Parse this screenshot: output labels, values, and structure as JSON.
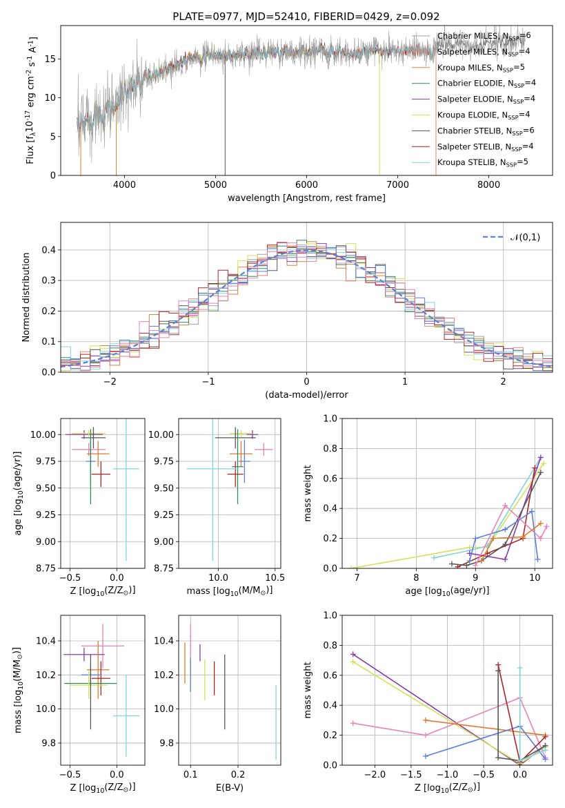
{
  "figure": {
    "title": "PLATE=0977, MJD=52410, FIBERID=0429, z=0.092"
  },
  "colors": {
    "chabrier_miles": "#a0a0a0",
    "salpeter_miles": "#e8836a",
    "kroupa_miles": "#d8823a",
    "chabrier_elodie": "#2e8b57",
    "salpeter_elodie": "#8a3aa8",
    "kroupa_elodie": "#d4e157",
    "chabrier_stelib": "#555555",
    "salpeter_stelib": "#b22222",
    "kroupa_stelib": "#7fd3e0",
    "blue": "#5b7fd6",
    "pink": "#e882b4",
    "orange": "#e07a2a"
  },
  "chart_data": [
    {
      "id": "spectrum",
      "type": "line",
      "xlabel": "wavelength [Angstrom, rest frame]",
      "ylabel": "Flux [f$_\\lambda$10$^{-17}$ erg cm$^{-2}$ s$^{-1}$ A$^{-1}$]",
      "xlim": [
        3300,
        8700
      ],
      "ylim": [
        0,
        19.3
      ],
      "xticks": [
        4000,
        5000,
        6000,
        7000,
        8000
      ],
      "yticks": [
        0,
        5,
        10,
        15
      ],
      "grid": false,
      "legend_position": "top-right",
      "legend": [
        "Chabrier MILES, N$_{SSP}$=6",
        "Salpeter MILES, N$_{SSP}$=4",
        "Kroupa MILES, N$_{SSP}$=5",
        "Chabrier ELODIE, N$_{SSP}$=4",
        "Salpeter ELODIE, N$_{SSP}$=4",
        "Kroupa ELODIE, N$_{SSP}$=4",
        "Chabrier STELIB, N$_{SSP}$=6",
        "Salpeter STELIB, N$_{SSP}$=4",
        "Kroupa STELIB, N$_{SSP}$=5"
      ],
      "continuum": [
        [
          3500,
          5.8
        ],
        [
          3600,
          7.0
        ],
        [
          3700,
          8.0
        ],
        [
          3800,
          8.5
        ],
        [
          3900,
          9.0
        ],
        [
          4000,
          10.5
        ],
        [
          4100,
          11.5
        ],
        [
          4200,
          12.5
        ],
        [
          4300,
          12.8
        ],
        [
          4400,
          13.2
        ],
        [
          4500,
          14.0
        ],
        [
          4600,
          14.5
        ],
        [
          4700,
          15.2
        ],
        [
          4800,
          15.4
        ],
        [
          4900,
          15.3
        ],
        [
          5000,
          15.5
        ],
        [
          5100,
          15.4
        ],
        [
          5200,
          15.4
        ],
        [
          5300,
          15.6
        ],
        [
          5500,
          15.8
        ],
        [
          5700,
          15.7
        ],
        [
          5900,
          16.0
        ],
        [
          6100,
          16.0
        ],
        [
          6300,
          16.0
        ],
        [
          6500,
          15.5
        ],
        [
          6700,
          16.0
        ],
        [
          6900,
          16.0
        ],
        [
          7100,
          16.0
        ],
        [
          7300,
          16.0
        ],
        [
          7400,
          16.0
        ],
        [
          7500,
          17.0
        ],
        [
          7700,
          16.8
        ],
        [
          7900,
          16.5
        ],
        [
          8100,
          17.2
        ],
        [
          8300,
          17.4
        ]
      ]
    },
    {
      "id": "residuals",
      "type": "area",
      "xlabel": "(data-model)/error",
      "ylabel": "Normed distribution",
      "xlim": [
        -2.5,
        2.5
      ],
      "ylim": [
        0,
        0.49
      ],
      "xticks": [
        -2,
        -1,
        0,
        1,
        2
      ],
      "yticks": [
        0.0,
        0.1,
        0.2,
        0.3,
        0.4
      ],
      "grid": true,
      "legend_position": "top-right",
      "legend": [
        "$\\mathcal{N}(0,1)$"
      ]
    },
    {
      "id": "age_vs_Z",
      "type": "scatter",
      "xlabel": "Z [log$_{10}$(Z/Z$_\\odot$)]",
      "ylabel": "age  [log$_{10}$(age/yr)]",
      "xlim": [
        -0.6,
        0.3
      ],
      "ylim": [
        8.75,
        10.15
      ],
      "xticks": [
        -0.5,
        0.0
      ],
      "yticks": [
        8.75,
        9.0,
        9.25,
        9.5,
        9.75,
        10.0
      ],
      "grid": true,
      "points": [
        {
          "c": "salpeter_elodie",
          "x": -0.35,
          "y": 10.0,
          "xe": 0.2,
          "ye": 0.04
        },
        {
          "c": "kroupa_elodie",
          "x": -0.3,
          "y": 10.01,
          "xe": 0.18,
          "ye": 0.03
        },
        {
          "c": "chabrier_stelib",
          "x": -0.25,
          "y": 9.97,
          "xe": 0.13,
          "ye": 0.1
        },
        {
          "c": "pink",
          "x": -0.3,
          "y": 9.86,
          "xe": 0.18,
          "ye": 0.06
        },
        {
          "c": "orange",
          "x": -0.2,
          "y": 9.82,
          "xe": 0.12,
          "ye": 0.12
        },
        {
          "c": "blue",
          "x": -0.28,
          "y": 9.75,
          "xe": 0.05,
          "ye": 0.2
        },
        {
          "c": "chabrier_elodie",
          "x": -0.28,
          "y": 9.7,
          "xe": 0.0,
          "ye": 0.35
        },
        {
          "c": "salpeter_stelib",
          "x": -0.17,
          "y": 9.63,
          "xe": 0.1,
          "ye": 0.12
        },
        {
          "c": "kroupa_stelib",
          "x": 0.1,
          "y": 9.68,
          "xe": 0.14,
          "ye": 0.86
        }
      ]
    },
    {
      "id": "age_vs_mass",
      "type": "scatter",
      "xlabel": "mass [log$_{10}$(M/M$_\\odot$)]",
      "ylabel": "",
      "xlim": [
        9.65,
        10.55
      ],
      "ylim": [
        8.75,
        10.15
      ],
      "xticks": [
        10.0,
        10.5
      ],
      "yticks": [
        8.75,
        9.0,
        9.25,
        9.5,
        9.75,
        10.0
      ],
      "grid": true,
      "points": [
        {
          "c": "salpeter_elodie",
          "x": 10.3,
          "y": 10.0,
          "xe": 0.05,
          "ye": 0.04
        },
        {
          "c": "kroupa_elodie",
          "x": 10.2,
          "y": 10.01,
          "xe": 0.1,
          "ye": 0.03
        },
        {
          "c": "chabrier_stelib",
          "x": 10.15,
          "y": 9.97,
          "xe": 0.18,
          "ye": 0.1
        },
        {
          "c": "pink",
          "x": 10.4,
          "y": 9.86,
          "xe": 0.08,
          "ye": 0.06
        },
        {
          "c": "orange",
          "x": 10.2,
          "y": 9.82,
          "xe": 0.1,
          "ye": 0.12
        },
        {
          "c": "blue",
          "x": 10.23,
          "y": 9.75,
          "xe": 0.05,
          "ye": 0.2
        },
        {
          "c": "chabrier_elodie",
          "x": 10.17,
          "y": 9.7,
          "xe": 0.05,
          "ye": 0.35
        },
        {
          "c": "salpeter_stelib",
          "x": 10.15,
          "y": 9.63,
          "xe": 0.07,
          "ye": 0.12
        },
        {
          "c": "kroupa_stelib",
          "x": 9.95,
          "y": 9.68,
          "xe": 0.23,
          "ye": 0.86
        }
      ]
    },
    {
      "id": "weight_vs_age",
      "type": "line",
      "xlabel": "age  [log$_{10}$(age/yr)]",
      "ylabel": "mass weight",
      "xlim": [
        6.75,
        10.3
      ],
      "ylim": [
        0,
        1.0
      ],
      "xticks": [
        7,
        8,
        9,
        10
      ],
      "yticks": [
        0.0,
        0.2,
        0.4,
        0.6,
        0.8,
        1.0
      ],
      "grid": true,
      "series": [
        {
          "c": "kroupa_elodie",
          "x": [
            6.9,
            8.9,
            9.2,
            10.15
          ],
          "y": [
            0.0,
            0.14,
            0.14,
            0.7
          ]
        },
        {
          "c": "kroupa_stelib",
          "x": [
            8.3,
            8.9,
            9.2,
            10.1
          ],
          "y": [
            0.07,
            0.12,
            0.15,
            0.74
          ]
        },
        {
          "c": "salpeter_elodie",
          "x": [
            8.9,
            9.5,
            10.1
          ],
          "y": [
            0.1,
            0.06,
            0.74
          ]
        },
        {
          "c": "salpeter_stelib",
          "x": [
            8.7,
            9.2,
            9.8,
            10.0
          ],
          "y": [
            0.01,
            0.1,
            0.2,
            0.67
          ]
        },
        {
          "c": "chabrier_stelib",
          "x": [
            8.6,
            8.85,
            9.1,
            9.5,
            10.1
          ],
          "y": [
            0.03,
            0.02,
            0.05,
            0.16,
            0.64
          ]
        },
        {
          "c": "blue",
          "x": [
            8.9,
            9.0,
            9.5,
            9.95,
            10.05
          ],
          "y": [
            0.05,
            0.2,
            0.26,
            0.38,
            0.06
          ]
        },
        {
          "c": "pink",
          "x": [
            9.0,
            9.5,
            10.1,
            10.2
          ],
          "y": [
            0.02,
            0.42,
            0.2,
            0.28
          ]
        },
        {
          "c": "orange",
          "x": [
            9.1,
            9.3,
            9.8,
            10.1
          ],
          "y": [
            0.05,
            0.2,
            0.21,
            0.3
          ]
        }
      ]
    },
    {
      "id": "mass_vs_Z",
      "type": "scatter",
      "xlabel": "Z [log$_{10}$(Z/Z$_\\odot$)]",
      "ylabel": "mass [log$_{10}$(M/M$_\\odot$)]",
      "xlim": [
        -0.6,
        0.3
      ],
      "ylim": [
        9.67,
        10.55
      ],
      "xticks": [
        -0.5,
        0.0
      ],
      "yticks": [
        9.8,
        10.0,
        10.2,
        10.4
      ],
      "grid": true,
      "points": [
        {
          "c": "pink",
          "x": -0.15,
          "y": 10.37,
          "xe": 0.23,
          "ye": 0.13
        },
        {
          "c": "salpeter_elodie",
          "x": -0.35,
          "y": 10.32,
          "xe": 0.22,
          "ye": 0.04
        },
        {
          "c": "orange",
          "x": -0.2,
          "y": 10.23,
          "xe": 0.12,
          "ye": 0.17
        },
        {
          "c": "blue",
          "x": -0.28,
          "y": 10.2,
          "xe": 0.1,
          "ye": 0.05
        },
        {
          "c": "salpeter_stelib",
          "x": -0.17,
          "y": 10.18,
          "xe": 0.1,
          "ye": 0.1
        },
        {
          "c": "chabrier_elodie",
          "x": -0.28,
          "y": 10.15,
          "xe": 0.28,
          "ye": 0.03
        },
        {
          "c": "kroupa_elodie",
          "x": -0.3,
          "y": 10.14,
          "xe": 0.2,
          "ye": 0.08
        },
        {
          "c": "chabrier_stelib",
          "x": -0.28,
          "y": 10.1,
          "xe": 0.0,
          "ye": 0.22
        },
        {
          "c": "kroupa_stelib",
          "x": 0.1,
          "y": 9.96,
          "xe": 0.14,
          "ye": 0.24
        }
      ]
    },
    {
      "id": "mass_vs_ebv",
      "type": "scatter",
      "xlabel": "E(B-V)",
      "ylabel": "",
      "xlim": [
        0.075,
        0.29
      ],
      "ylim": [
        9.67,
        10.55
      ],
      "xticks": [
        0.1,
        0.2
      ],
      "yticks": [
        9.8,
        10.0,
        10.2,
        10.4
      ],
      "grid": true,
      "points": [
        {
          "c": "orange",
          "x": 0.088,
          "y": 10.27,
          "xe": 0,
          "ye": 0.12
        },
        {
          "c": "pink",
          "x": 0.1,
          "y": 10.35,
          "xe": 0,
          "ye": 0.15
        },
        {
          "c": "blue",
          "x": 0.1,
          "y": 10.2,
          "xe": 0,
          "ye": 0.1
        },
        {
          "c": "salpeter_elodie",
          "x": 0.12,
          "y": 10.33,
          "xe": 0,
          "ye": 0.05
        },
        {
          "c": "kroupa_elodie",
          "x": 0.13,
          "y": 10.17,
          "xe": 0,
          "ye": 0.12
        },
        {
          "c": "salpeter_stelib",
          "x": 0.15,
          "y": 10.18,
          "xe": 0,
          "ye": 0.1
        },
        {
          "c": "chabrier_stelib",
          "x": 0.172,
          "y": 10.1,
          "xe": 0,
          "ye": 0.22
        },
        {
          "c": "kroupa_stelib",
          "x": 0.28,
          "y": 9.92,
          "xe": 0,
          "ye": 0.22
        }
      ]
    },
    {
      "id": "weight_vs_Z",
      "type": "line",
      "xlabel": "Z [log$_{10}$(Z/Z$_\\odot$)]",
      "ylabel": "mass weight",
      "xlim": [
        -2.45,
        0.45
      ],
      "ylim": [
        0,
        1.0
      ],
      "xticks": [
        -2.0,
        -1.5,
        -1.0,
        -0.5,
        0.0
      ],
      "yticks": [
        0.0,
        0.2,
        0.4,
        0.6,
        0.8,
        1.0
      ],
      "grid": true,
      "series": [
        {
          "c": "salpeter_elodie",
          "x": [
            -2.3,
            0.0,
            0.35
          ],
          "y": [
            0.74,
            0.0,
            0.13
          ]
        },
        {
          "c": "kroupa_elodie",
          "x": [
            -2.3,
            0.0,
            0.35
          ],
          "y": [
            0.69,
            0.01,
            0.12
          ]
        },
        {
          "c": "pink",
          "x": [
            -2.3,
            -1.3,
            0.0,
            0.35
          ],
          "y": [
            0.28,
            0.2,
            0.45,
            0.05
          ]
        },
        {
          "c": "orange",
          "x": [
            -1.3,
            0.35
          ],
          "y": [
            0.3,
            0.2
          ]
        },
        {
          "c": "blue",
          "x": [
            -1.3,
            0.0,
            0.35
          ],
          "y": [
            0.06,
            0.26,
            0.04
          ]
        },
        {
          "c": "salpeter_stelib",
          "x": [
            -0.3,
            0.0,
            0.35
          ],
          "y": [
            0.67,
            0.02,
            0.19
          ]
        },
        {
          "c": "chabrier_stelib",
          "x": [
            -0.3,
            -0.3,
            0.0,
            0.35
          ],
          "y": [
            0.63,
            0.05,
            0.03,
            0.13
          ]
        },
        {
          "c": "kroupa_stelib",
          "x": [
            0.0,
            0.0,
            0.35
          ],
          "y": [
            0.65,
            0.03,
            0.1
          ]
        }
      ]
    }
  ]
}
